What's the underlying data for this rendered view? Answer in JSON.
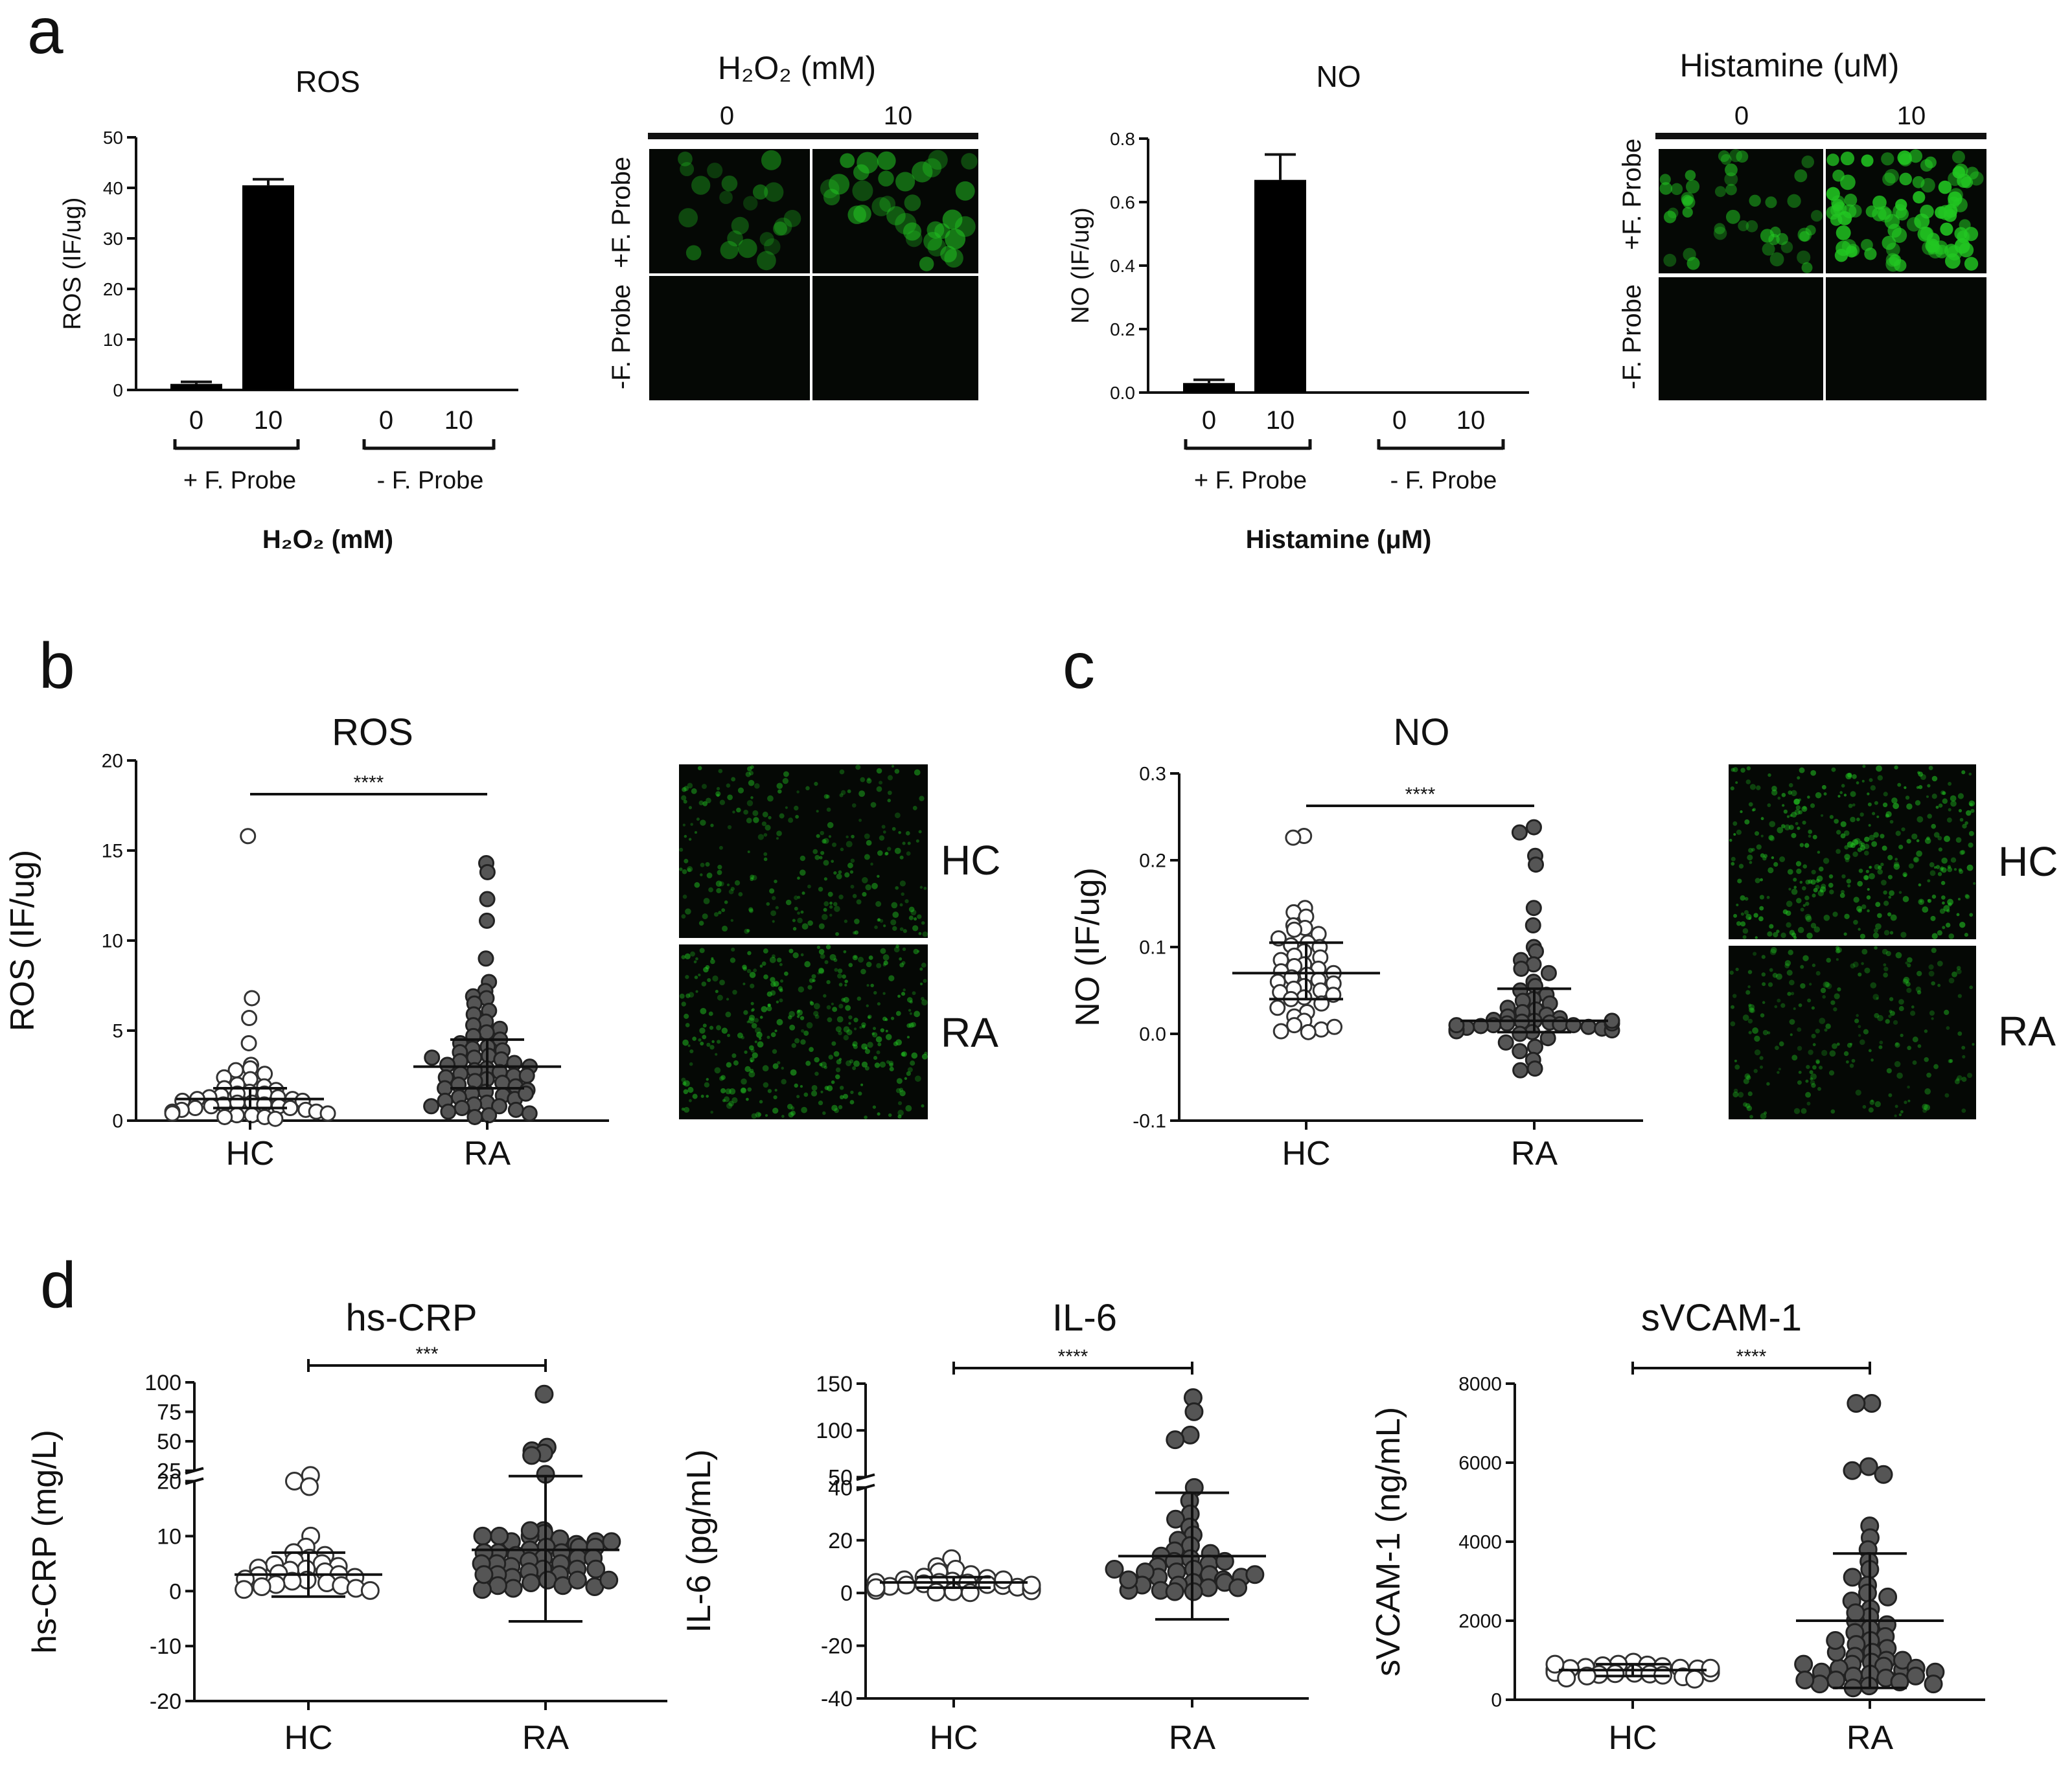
{
  "figure": {
    "panel_labels": {
      "a": "a",
      "b": "b",
      "c": "c",
      "d": "d"
    },
    "probe_plus": "+ F. Probe",
    "probe_minus": "- F. Probe",
    "row_plus": "+F. Probe",
    "row_minus": "-F. Probe",
    "micro_h2o2_title": "H₂O₂ (mM)",
    "micro_hist_title": "Histamine (uM)",
    "micro_cols": [
      "0",
      "10"
    ],
    "img_labels": {
      "hc": "HC",
      "ra": "RA"
    },
    "colors": {
      "bar": "#000000",
      "open_marker": "#ffffff",
      "filled_marker": "#555555",
      "fluor": "#22c722",
      "panel_bg": "#050805"
    }
  },
  "chart_data": [
    {
      "id": "a-ros",
      "type": "bar",
      "title": "ROS",
      "xlabel": "H₂O₂ (mM)",
      "ylabel": "ROS (IF/ug)",
      "categories": [
        "0",
        "10",
        "0",
        "10"
      ],
      "groups": [
        "+ F. Probe",
        "- F. Probe"
      ],
      "values": [
        1.2,
        40.5,
        0,
        0
      ],
      "errors": [
        0.4,
        1.2,
        0,
        0
      ],
      "ylim": [
        0,
        50
      ],
      "yticks": [
        "0",
        "10",
        "20",
        "30",
        "40",
        "50"
      ]
    },
    {
      "id": "a-no",
      "type": "bar",
      "title": "NO",
      "xlabel": "Histamine (μM)",
      "ylabel": "NO (IF/ug)",
      "categories": [
        "0",
        "10",
        "0",
        "10"
      ],
      "groups": [
        "+ F. Probe",
        "- F. Probe"
      ],
      "values": [
        0.03,
        0.67,
        0,
        0
      ],
      "errors": [
        0.01,
        0.08,
        0,
        0
      ],
      "ylim": [
        0,
        0.8
      ],
      "yticks": [
        "0.0",
        "0.2",
        "0.4",
        "0.6",
        "0.8"
      ]
    },
    {
      "id": "b-ros",
      "type": "scatter",
      "title": "ROS",
      "ylabel": "ROS (IF/ug)",
      "categories": [
        "HC",
        "RA"
      ],
      "significance": "****",
      "ylim": [
        0,
        20
      ],
      "yticks": [
        "0",
        "5",
        "10",
        "15",
        "20"
      ],
      "series": [
        {
          "name": "HC",
          "marker": "open",
          "mean": 1.2,
          "sd_low": 0.7,
          "sd_high": 1.8,
          "values": [
            15.8,
            6.8,
            5.7,
            4.3,
            3.1,
            2.9,
            2.8,
            2.6,
            2.4,
            2.3,
            2.0,
            1.9,
            1.8,
            1.7,
            1.6,
            1.5,
            1.5,
            1.4,
            1.3,
            1.3,
            1.2,
            1.2,
            1.1,
            1.1,
            1.0,
            1.0,
            0.9,
            0.9,
            0.8,
            0.8,
            0.7,
            0.7,
            0.6,
            0.6,
            0.5,
            0.5,
            0.4,
            0.4,
            0.3,
            0.3,
            0.2,
            0.2,
            0.1
          ]
        },
        {
          "name": "RA",
          "marker": "filled",
          "mean": 3.0,
          "sd_low": 1.8,
          "sd_high": 4.5,
          "values": [
            14.3,
            13.8,
            12.3,
            11.1,
            9.0,
            7.7,
            7.2,
            6.9,
            6.8,
            6.5,
            6.1,
            5.9,
            5.5,
            5.3,
            5.1,
            4.9,
            4.7,
            4.5,
            4.3,
            4.1,
            4.0,
            3.9,
            3.8,
            3.6,
            3.5,
            3.4,
            3.3,
            3.2,
            3.1,
            3.0,
            2.9,
            2.8,
            2.7,
            2.6,
            2.5,
            2.4,
            2.3,
            2.2,
            2.1,
            2.0,
            1.9,
            1.8,
            1.7,
            1.6,
            1.5,
            1.4,
            1.3,
            1.2,
            1.1,
            1.0,
            0.9,
            0.8,
            0.7,
            0.6,
            0.5,
            0.4,
            0.3,
            0.2,
            2.5,
            1.5,
            3.5,
            0.8
          ]
        }
      ]
    },
    {
      "id": "c-no",
      "type": "scatter",
      "title": "NO",
      "ylabel": "NO (IF/ug)",
      "categories": [
        "HC",
        "RA"
      ],
      "significance": "****",
      "ylim": [
        -0.1,
        0.3
      ],
      "yticks": [
        "-0.1",
        "0.0",
        "0.1",
        "0.2",
        "0.3"
      ],
      "series": [
        {
          "name": "HC",
          "marker": "open",
          "mean": 0.07,
          "sd_low": 0.04,
          "sd_high": 0.105,
          "values": [
            0.228,
            0.226,
            0.145,
            0.14,
            0.135,
            0.125,
            0.122,
            0.12,
            0.115,
            0.11,
            0.105,
            0.102,
            0.1,
            0.095,
            0.09,
            0.088,
            0.085,
            0.08,
            0.078,
            0.075,
            0.072,
            0.07,
            0.068,
            0.065,
            0.062,
            0.06,
            0.058,
            0.055,
            0.052,
            0.05,
            0.048,
            0.045,
            0.042,
            0.04,
            0.035,
            0.03,
            0.025,
            0.02,
            0.015,
            0.01,
            0.005,
            0.002,
            0.003,
            0.008
          ]
        },
        {
          "name": "RA",
          "marker": "filled",
          "mean": 0.015,
          "sd_low": 0.002,
          "sd_high": 0.052,
          "values": [
            0.238,
            0.232,
            0.205,
            0.195,
            0.145,
            0.125,
            0.1,
            0.095,
            0.085,
            0.08,
            0.075,
            0.07,
            0.06,
            0.055,
            0.05,
            0.045,
            0.04,
            0.038,
            0.035,
            0.03,
            0.028,
            0.025,
            0.022,
            0.02,
            0.018,
            0.016,
            0.015,
            0.014,
            0.013,
            0.012,
            0.011,
            0.01,
            0.01,
            0.009,
            0.008,
            0.007,
            0.006,
            0.005,
            0.004,
            0.003,
            0.002,
            0.0,
            -0.005,
            -0.01,
            -0.015,
            -0.02,
            -0.03,
            -0.04,
            -0.042,
            0.012,
            0.01,
            0.015
          ]
        }
      ]
    },
    {
      "id": "d-crp",
      "type": "scatter",
      "title": "hs-CRP",
      "ylabel": "hs-CRP (mg/L)",
      "categories": [
        "HC",
        "RA"
      ],
      "significance": "***",
      "ylim": [
        -20,
        100
      ],
      "y_axis_break": [
        20,
        25
      ],
      "yticks": [
        "-20",
        "-10",
        "0",
        "10",
        "20",
        "25",
        "50",
        "75",
        "100"
      ],
      "series": [
        {
          "name": "HC",
          "marker": "open",
          "mean": 3.0,
          "sd_low": -1.0,
          "sd_high": 7.0,
          "values": [
            21,
            20,
            19,
            10,
            8,
            7,
            6.5,
            6,
            5.5,
            5,
            4.8,
            4.5,
            4.2,
            4,
            3.8,
            3.5,
            3.2,
            3,
            2.8,
            2.5,
            2.2,
            2,
            1.8,
            1.5,
            1.2,
            1,
            0.8,
            0.5,
            0.3,
            0.1
          ]
        },
        {
          "name": "RA",
          "marker": "filled",
          "mean": 7.5,
          "sd_low": -5.5,
          "sd_high": 20.5,
          "values": [
            90,
            45,
            42,
            40,
            38,
            22,
            11,
            10.5,
            10,
            9.5,
            9,
            8.5,
            8,
            7.5,
            7,
            6.5,
            6,
            5.5,
            5,
            4.5,
            4,
            3.5,
            3,
            2.5,
            2,
            1.5,
            1,
            0.5,
            10,
            9,
            8,
            7,
            6,
            5,
            4,
            3,
            2,
            1,
            0.8,
            0.3,
            11,
            10,
            9,
            8,
            7,
            6,
            5,
            4,
            3,
            2
          ]
        }
      ]
    },
    {
      "id": "d-il6",
      "type": "scatter",
      "title": "IL-6",
      "ylabel": "IL-6 (pg/mL)",
      "categories": [
        "HC",
        "RA"
      ],
      "significance": "****",
      "ylim": [
        -40,
        150
      ],
      "y_axis_break": [
        40,
        50
      ],
      "yticks": [
        "-40",
        "-20",
        "0",
        "20",
        "40",
        "50",
        "100",
        "150"
      ],
      "series": [
        {
          "name": "HC",
          "marker": "open",
          "mean": 4.0,
          "sd_low": 2.0,
          "sd_high": 6.0,
          "values": [
            13,
            10,
            9,
            8,
            7,
            6,
            5.5,
            5,
            4.5,
            4,
            3.8,
            3.5,
            3.2,
            3,
            2.8,
            2.5,
            2.2,
            2,
            1.8,
            1.5,
            1.2,
            1,
            0.8,
            0.5,
            0.3,
            0.1,
            4,
            3,
            5,
            2
          ]
        },
        {
          "name": "RA",
          "marker": "filled",
          "mean": 14.0,
          "sd_low": -10.0,
          "sd_high": 38.0,
          "values": [
            135,
            120,
            95,
            90,
            40,
            35,
            30,
            28,
            25,
            22,
            20,
            18,
            16,
            15,
            14,
            13,
            12,
            11,
            10,
            9,
            8,
            7,
            6,
            5,
            4,
            3,
            2,
            1,
            0.5,
            8,
            6,
            4,
            3,
            2,
            1,
            0.5,
            5,
            7,
            9,
            12
          ]
        }
      ]
    },
    {
      "id": "d-svcam",
      "type": "scatter",
      "title": "sVCAM-1",
      "ylabel": "sVCAM-1 (ng/mL)",
      "categories": [
        "HC",
        "RA"
      ],
      "significance": "****",
      "ylim": [
        0,
        8000
      ],
      "yticks": [
        "0",
        "2000",
        "4000",
        "6000",
        "8000"
      ],
      "series": [
        {
          "name": "HC",
          "marker": "open",
          "mean": 750,
          "sd_low": 600,
          "sd_high": 900,
          "values": [
            950,
            900,
            880,
            860,
            840,
            820,
            800,
            790,
            780,
            770,
            760,
            750,
            740,
            730,
            720,
            710,
            700,
            690,
            680,
            670,
            660,
            650,
            640,
            620,
            600,
            580,
            550,
            520,
            900,
            800
          ]
        },
        {
          "name": "RA",
          "marker": "filled",
          "mean": 2000,
          "sd_low": 300,
          "sd_high": 3700,
          "values": [
            7500,
            7500,
            5900,
            5800,
            5700,
            4400,
            4100,
            3800,
            3500,
            3300,
            3100,
            2900,
            2700,
            2500,
            2300,
            2100,
            2000,
            1900,
            1800,
            1700,
            1600,
            1500,
            1400,
            1300,
            1200,
            1100,
            1000,
            950,
            900,
            850,
            800,
            750,
            700,
            650,
            600,
            550,
            500,
            450,
            400,
            350,
            300,
            1200,
            1000,
            800,
            600,
            1500,
            2200,
            2600,
            900,
            700,
            500,
            400
          ]
        }
      ]
    }
  ]
}
